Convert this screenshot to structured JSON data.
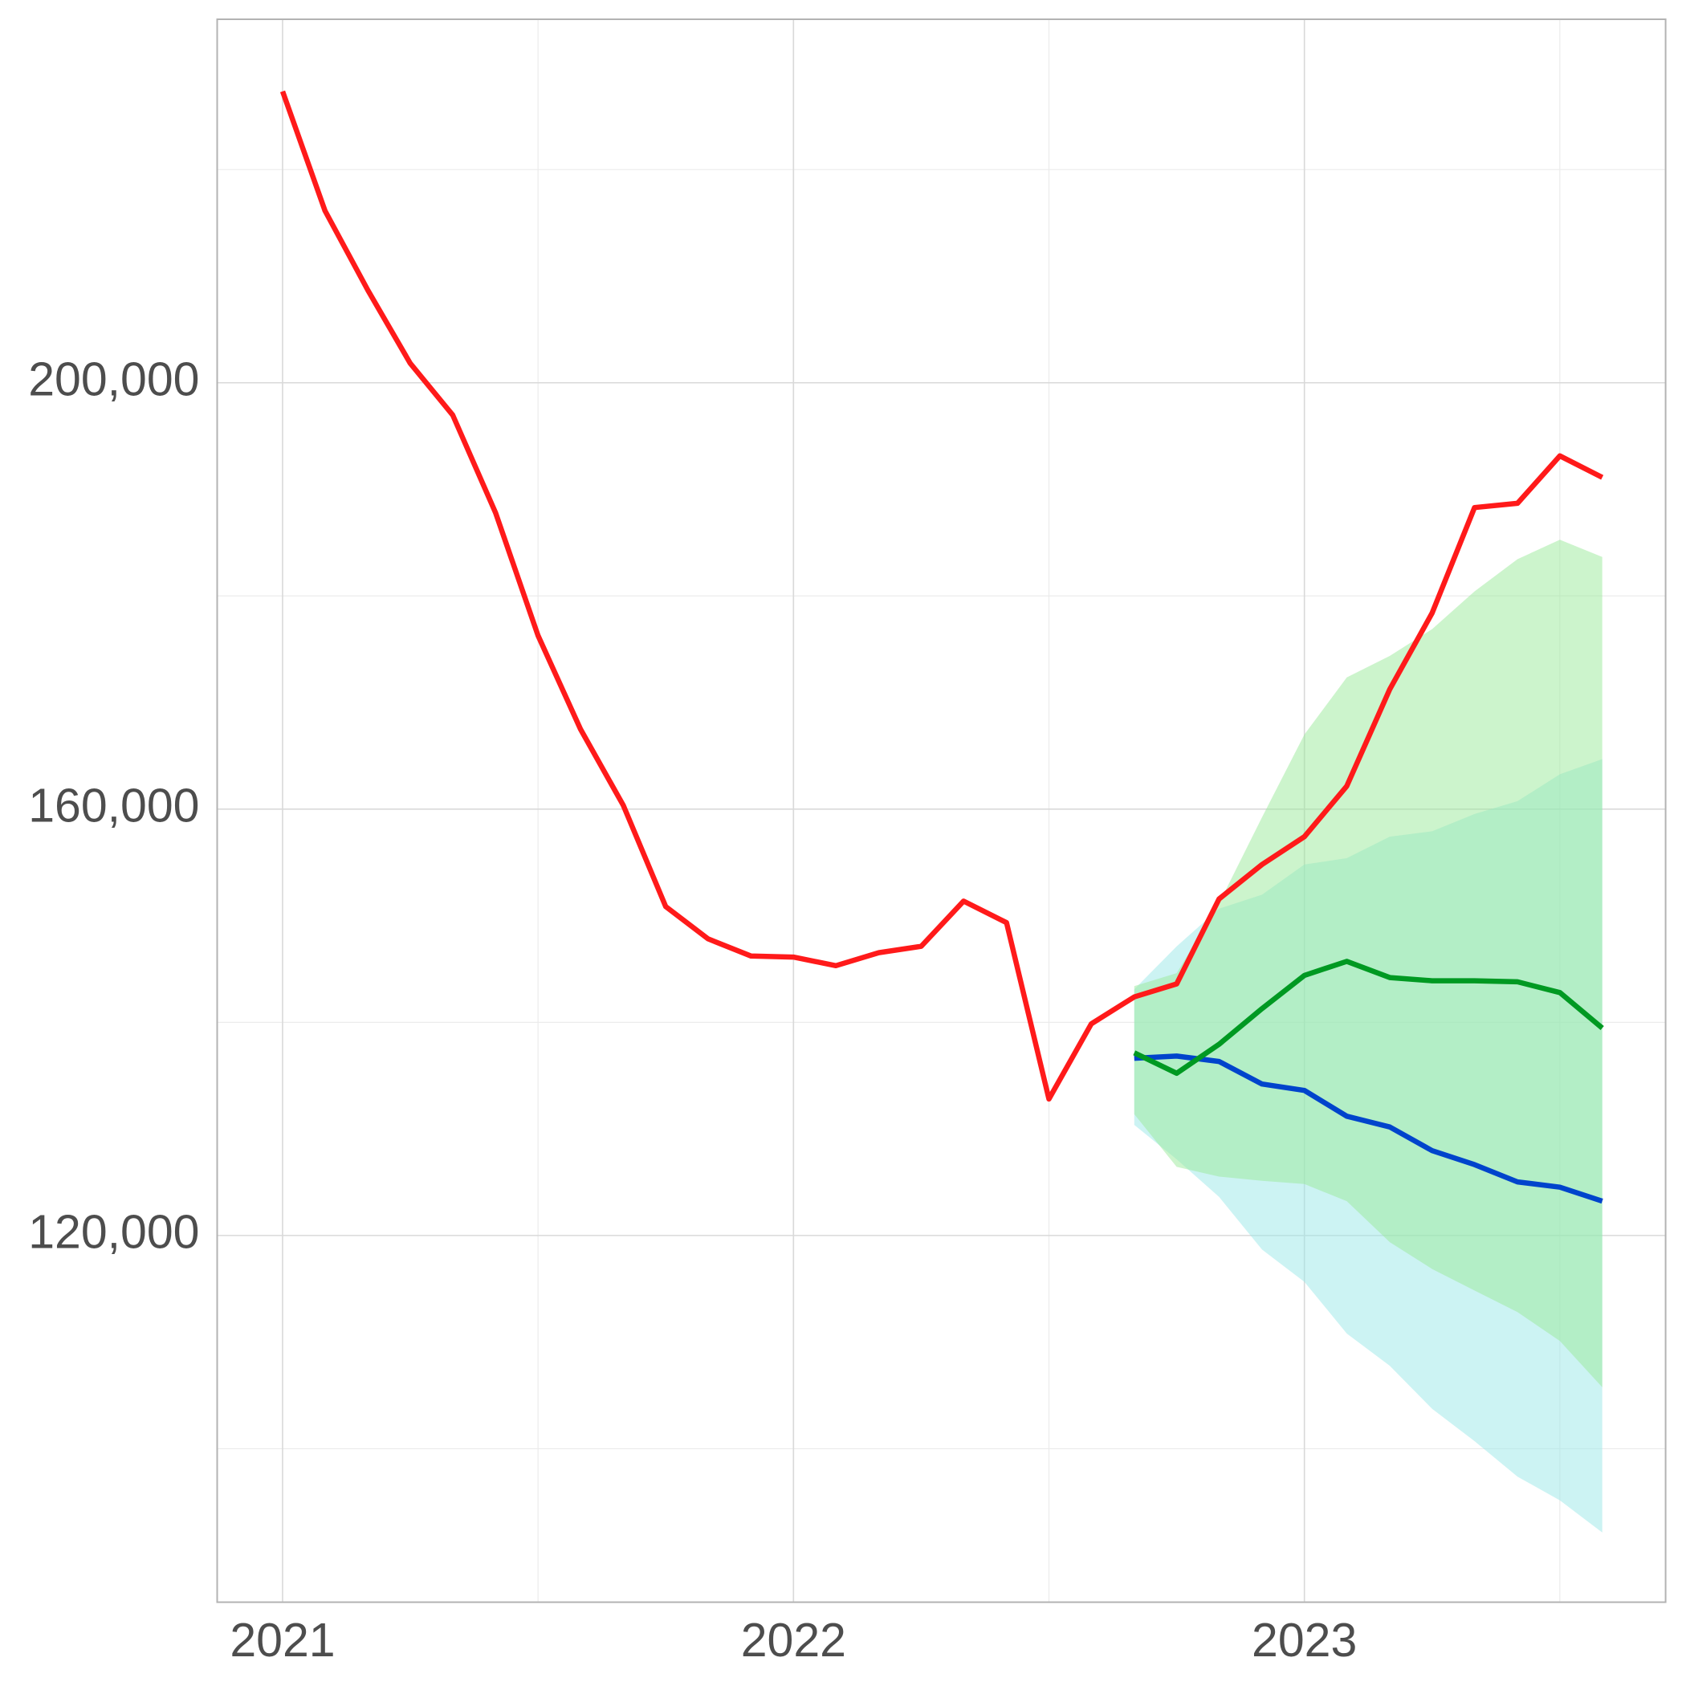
{
  "chart_data": {
    "type": "line",
    "x": [
      2021,
      2021.083,
      2021.167,
      2021.25,
      2021.333,
      2021.417,
      2021.5,
      2021.583,
      2021.667,
      2021.75,
      2021.833,
      2021.917,
      2022,
      2022.083,
      2022.167,
      2022.25,
      2022.333,
      2022.417,
      2022.5,
      2022.583,
      2022.667,
      2022.75,
      2022.833,
      2022.917,
      2023,
      2023.083,
      2023.167,
      2023.25,
      2023.333,
      2023.417,
      2023.5,
      2023.583
    ],
    "bands": [
      {
        "color": "#99e7e7",
        "lower": [
          null,
          null,
          null,
          null,
          null,
          null,
          null,
          null,
          null,
          null,
          null,
          null,
          null,
          null,
          null,
          null,
          null,
          null,
          null,
          null,
          130380,
          127150,
          123620,
          118680,
          115650,
          110800,
          107780,
          103740,
          100710,
          97380,
          95160,
          92140
        ],
        "upper": [
          null,
          null,
          null,
          null,
          null,
          null,
          null,
          null,
          null,
          null,
          null,
          null,
          null,
          null,
          null,
          null,
          null,
          null,
          null,
          null,
          143090,
          147130,
          150660,
          151970,
          154800,
          155400,
          157420,
          157920,
          159540,
          160750,
          163270,
          164690
        ]
      },
      {
        "color": "#99e999",
        "lower": [
          null,
          null,
          null,
          null,
          null,
          null,
          null,
          null,
          null,
          null,
          null,
          null,
          null,
          null,
          null,
          null,
          null,
          null,
          null,
          null,
          131390,
          126440,
          125530,
          125130,
          124830,
          123220,
          119380,
          116860,
          114840,
          112820,
          110100,
          105760
        ],
        "upper": [
          null,
          null,
          null,
          null,
          null,
          null,
          null,
          null,
          null,
          null,
          null,
          null,
          null,
          null,
          null,
          null,
          null,
          null,
          null,
          null,
          143390,
          144610,
          151160,
          159230,
          167000,
          172350,
          174370,
          176890,
          180430,
          183450,
          185270,
          183650
        ]
      }
    ],
    "series": [
      {
        "color": "#ff1a1a",
        "values": [
          227340,
          216140,
          208680,
          201820,
          196970,
          187790,
          176290,
          167510,
          160350,
          150860,
          147830,
          146220,
          146120,
          145310,
          146530,
          147130,
          151370,
          149350,
          132800,
          139860,
          142380,
          143600,
          151570,
          154800,
          157420,
          162160,
          171240,
          178400,
          188290,
          188690,
          193140,
          191120
        ]
      },
      {
        "color": "#0044cc",
        "values": [
          null,
          null,
          null,
          null,
          null,
          null,
          null,
          null,
          null,
          null,
          null,
          null,
          null,
          null,
          null,
          null,
          null,
          null,
          null,
          null,
          136630,
          136830,
          136330,
          134210,
          133610,
          131190,
          130180,
          127960,
          126650,
          125030,
          124530,
          123220
        ]
      },
      {
        "color": "#009922",
        "values": [
          null,
          null,
          null,
          null,
          null,
          null,
          null,
          null,
          null,
          null,
          null,
          null,
          null,
          null,
          null,
          null,
          null,
          null,
          null,
          null,
          137140,
          135220,
          137940,
          141280,
          144400,
          145720,
          144200,
          143900,
          143900,
          143800,
          142790,
          139460
        ]
      }
    ],
    "xlim": [
      2020.872,
      2023.707
    ],
    "ylim": [
      85600,
      234100
    ],
    "xticks": [
      2021,
      2022,
      2023
    ],
    "yticks": [
      {
        "value": 120000,
        "label": "120,000"
      },
      {
        "value": 160000,
        "label": "160,000"
      },
      {
        "value": 200000,
        "label": "200,000"
      }
    ],
    "xminor": [
      2021.5,
      2022.5,
      2023.5
    ],
    "yminor": [
      100000,
      140000,
      180000,
      220000
    ],
    "grid": true
  }
}
